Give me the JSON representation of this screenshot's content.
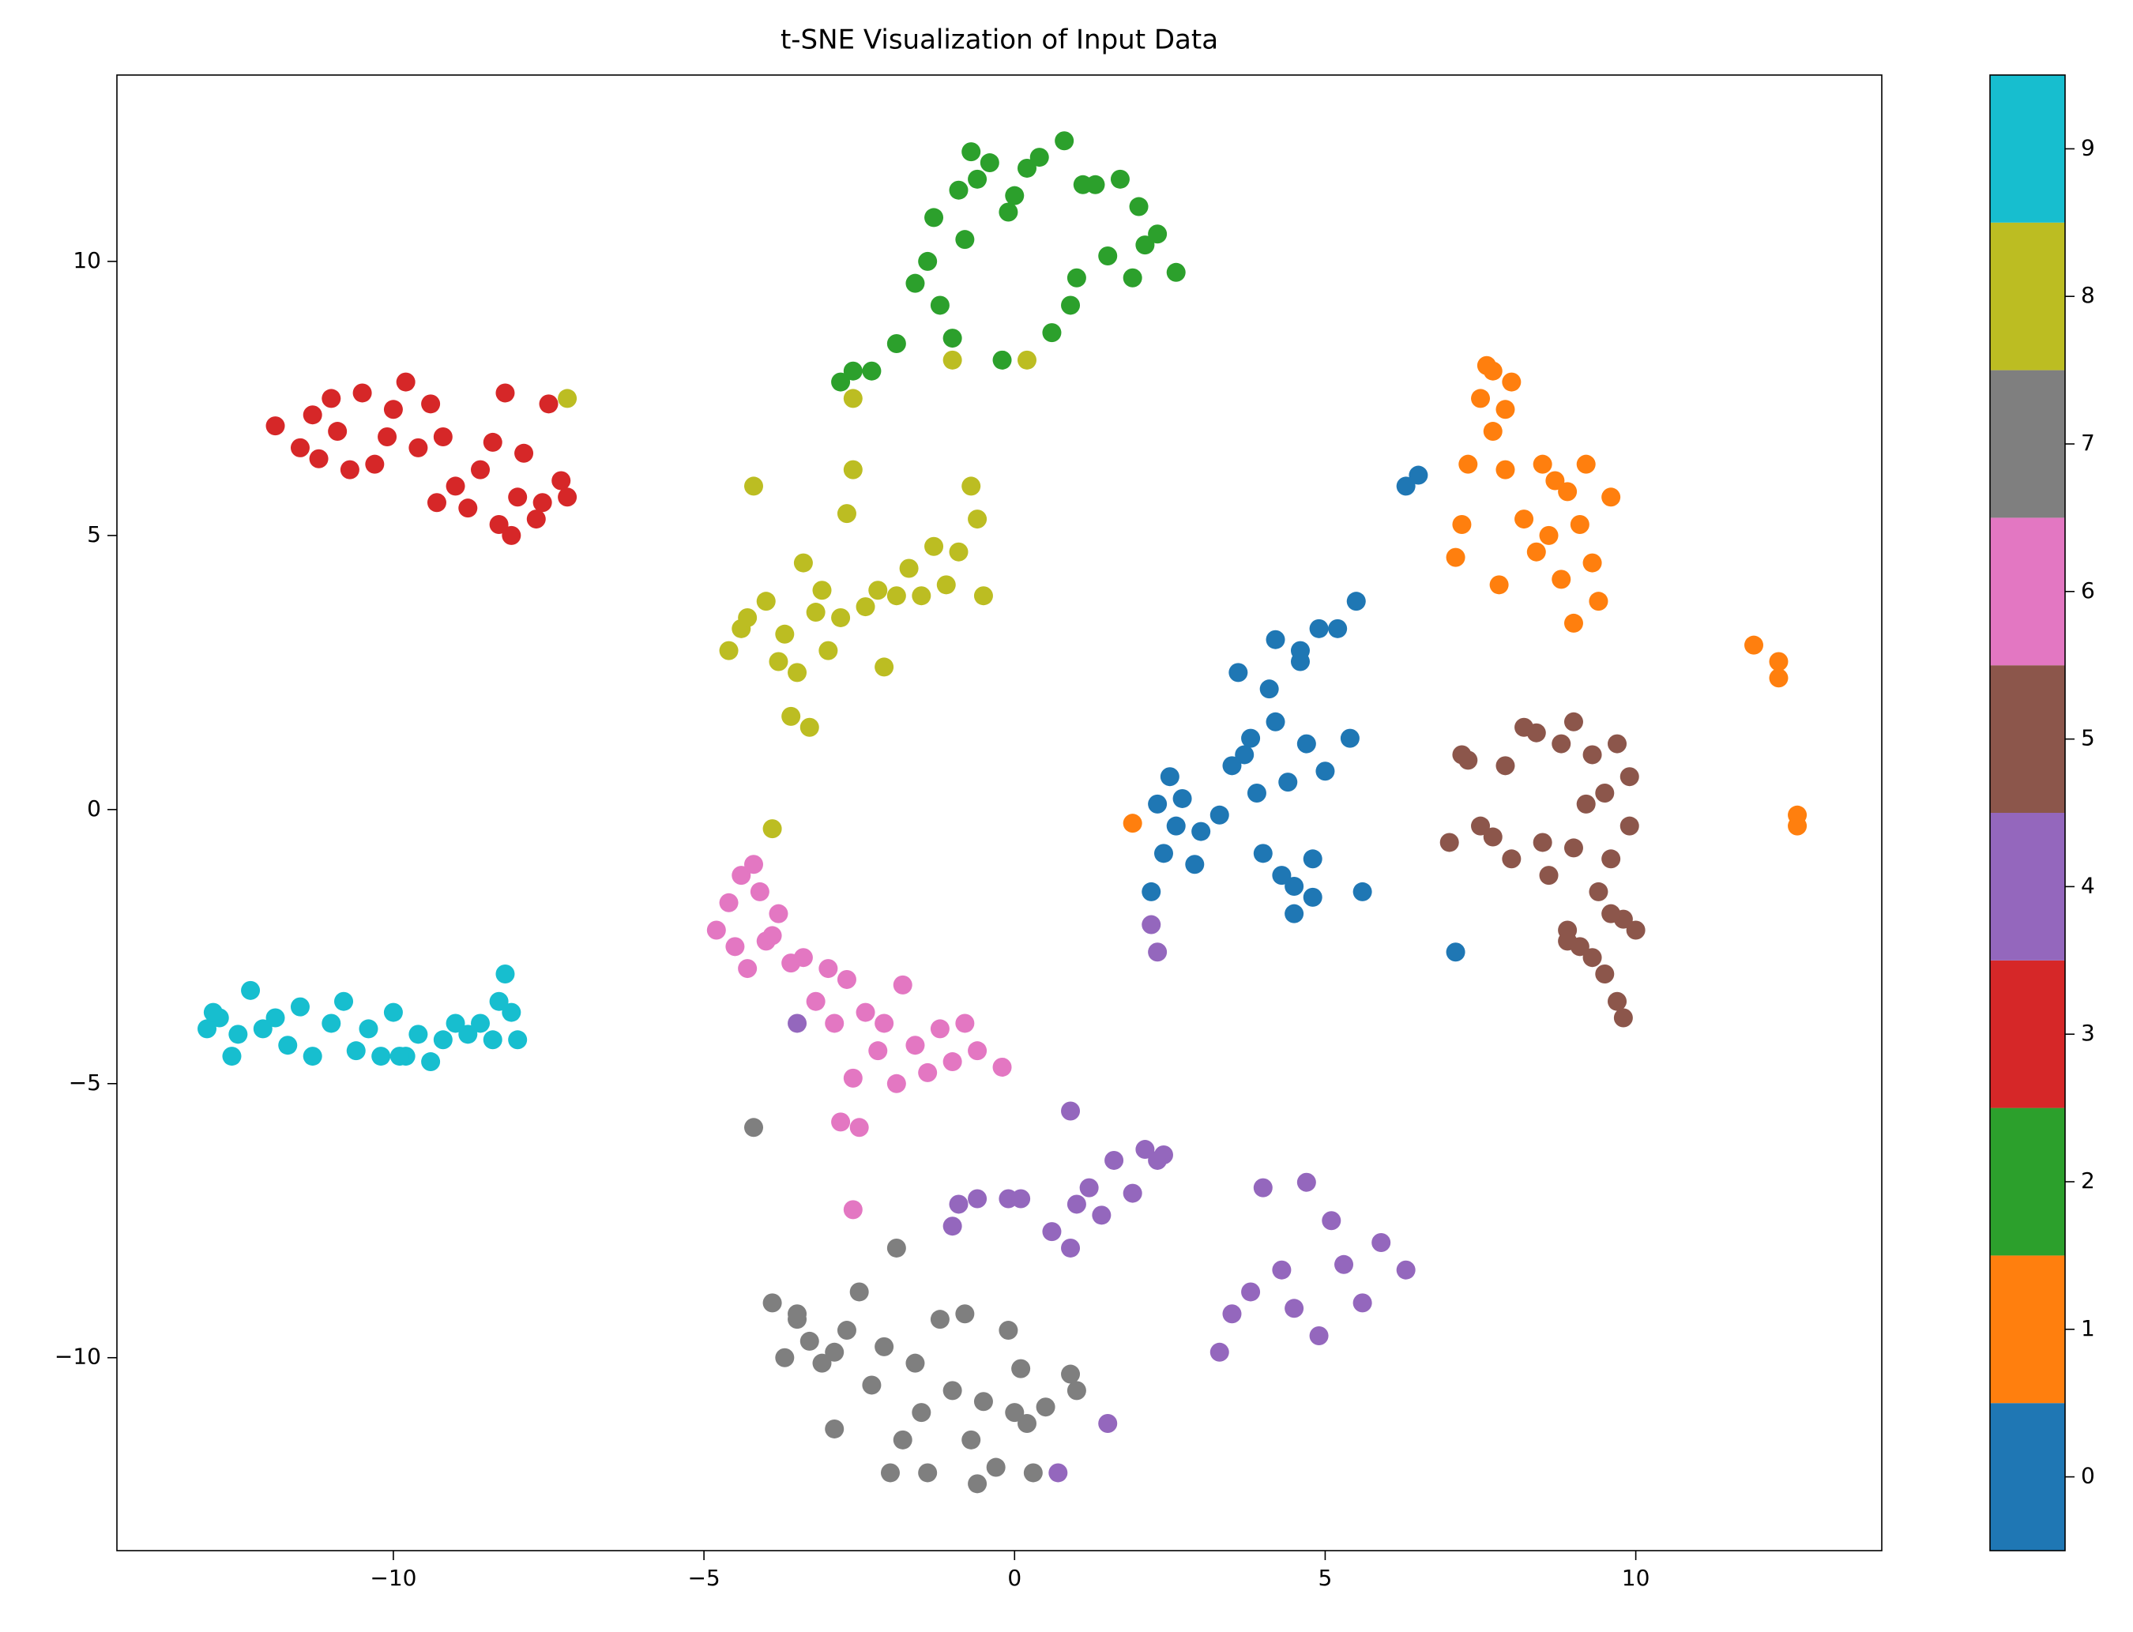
{
  "chart_data": {
    "type": "scatter",
    "title": "t-SNE Visualization of Input Data",
    "xlim": [
      -14.45,
      13.96
    ],
    "ylim": [
      -13.52,
      13.4
    ],
    "xticks": [
      {
        "value": -10,
        "label": "−10"
      },
      {
        "value": -5,
        "label": "−5"
      },
      0,
      5,
      10
    ],
    "yticks": [
      {
        "value": -10,
        "label": "−10"
      },
      {
        "value": -5,
        "label": "−5"
      },
      0,
      5,
      10
    ],
    "colormap": [
      "#1f77b4",
      "#ff7f0e",
      "#2ca02c",
      "#d62728",
      "#9467bd",
      "#8c564b",
      "#e377c2",
      "#7f7f7f",
      "#bcbd22",
      "#17becf"
    ],
    "clim": [
      -0.5,
      9.5
    ],
    "cticks": [
      0,
      1,
      2,
      3,
      4,
      5,
      6,
      7,
      8,
      9
    ],
    "series": [
      {
        "c": 0,
        "x": [
          2.2,
          2.3,
          2.5,
          2.6,
          2.7,
          2.9,
          3.0,
          3.3,
          3.5,
          3.6,
          3.8,
          3.9,
          4.0,
          4.1,
          4.2,
          4.3,
          4.4,
          4.5,
          4.6,
          4.7,
          4.8,
          4.9,
          5.0,
          5.2,
          5.4,
          5.5,
          5.6,
          4.5,
          4.2,
          3.7,
          4.6,
          6.3,
          6.5,
          7.1,
          4.8,
          2.4
        ],
        "y": [
          -1.5,
          0.1,
          0.6,
          -0.3,
          0.2,
          -1.0,
          -0.4,
          -0.1,
          0.8,
          2.5,
          1.3,
          0.3,
          -0.8,
          2.2,
          3.1,
          -1.2,
          0.5,
          -1.9,
          2.7,
          1.2,
          -0.9,
          3.3,
          0.7,
          3.3,
          1.3,
          3.8,
          -1.5,
          -1.4,
          1.6,
          1.0,
          2.9,
          5.9,
          6.1,
          -2.6,
          -1.6,
          -0.8
        ]
      },
      {
        "c": 1,
        "x": [
          7.1,
          7.2,
          7.3,
          7.5,
          7.6,
          7.7,
          7.8,
          7.9,
          8.0,
          8.2,
          8.4,
          8.5,
          8.6,
          8.7,
          8.8,
          8.9,
          9.0,
          9.1,
          9.2,
          9.3,
          9.4,
          9.6,
          7.7,
          7.9,
          11.9,
          12.3,
          12.3,
          12.6,
          12.6,
          1.9
        ],
        "y": [
          4.6,
          5.2,
          6.3,
          7.5,
          8.1,
          8.0,
          4.1,
          6.2,
          7.8,
          5.3,
          4.7,
          6.3,
          5.0,
          6.0,
          4.2,
          5.8,
          3.4,
          5.2,
          6.3,
          4.5,
          3.8,
          5.7,
          6.9,
          7.3,
          3.0,
          2.7,
          2.4,
          -0.1,
          -0.3,
          -0.25
        ]
      },
      {
        "c": 2,
        "x": [
          -2.8,
          -2.6,
          -2.3,
          -1.9,
          -1.6,
          -1.4,
          -1.3,
          -1.2,
          -1.0,
          -0.9,
          -0.8,
          -0.7,
          -0.6,
          -0.4,
          -0.2,
          0.0,
          0.2,
          0.4,
          0.6,
          0.8,
          1.0,
          1.1,
          1.3,
          1.5,
          1.7,
          1.9,
          2.0,
          2.1,
          2.3,
          2.6,
          -0.1,
          0.9
        ],
        "y": [
          7.8,
          8.0,
          8.0,
          8.5,
          9.6,
          10.0,
          10.8,
          9.2,
          8.6,
          11.3,
          10.4,
          12.0,
          11.5,
          11.8,
          8.2,
          11.2,
          11.7,
          11.9,
          8.7,
          12.2,
          9.7,
          11.4,
          11.4,
          10.1,
          11.5,
          9.7,
          11.0,
          10.3,
          10.5,
          9.8,
          10.9,
          9.2
        ]
      },
      {
        "c": 3,
        "x": [
          -11.9,
          -11.5,
          -11.3,
          -11.2,
          -11.0,
          -10.9,
          -10.7,
          -10.5,
          -10.3,
          -10.1,
          -10.0,
          -9.8,
          -9.6,
          -9.4,
          -9.3,
          -9.2,
          -9.0,
          -8.8,
          -8.6,
          -8.4,
          -8.3,
          -8.2,
          -8.0,
          -7.9,
          -7.7,
          -7.6,
          -7.5,
          -7.3,
          -7.2,
          -8.1
        ],
        "y": [
          7.0,
          6.6,
          7.2,
          6.4,
          7.5,
          6.9,
          6.2,
          7.6,
          6.3,
          6.8,
          7.3,
          7.8,
          6.6,
          7.4,
          5.6,
          6.8,
          5.9,
          5.5,
          6.2,
          6.7,
          5.2,
          7.6,
          5.7,
          6.5,
          5.3,
          5.6,
          7.4,
          6.0,
          5.7,
          5.0
        ]
      },
      {
        "c": 4,
        "x": [
          -3.5,
          -1.0,
          -0.9,
          -0.6,
          -0.1,
          0.1,
          0.6,
          0.9,
          0.9,
          1.0,
          1.2,
          1.4,
          1.6,
          1.9,
          2.1,
          2.3,
          2.4,
          2.2,
          2.3,
          3.3,
          3.5,
          3.8,
          4.0,
          4.3,
          4.5,
          4.7,
          4.9,
          5.1,
          5.3,
          5.6,
          5.9,
          6.3,
          1.5,
          0.7
        ],
        "y": [
          -3.9,
          -7.6,
          -7.2,
          -7.1,
          -7.1,
          -7.1,
          -7.7,
          -5.5,
          -8.0,
          -7.2,
          -6.9,
          -7.4,
          -6.4,
          -7.0,
          -6.2,
          -6.4,
          -6.3,
          -2.1,
          -2.6,
          -9.9,
          -9.2,
          -8.8,
          -6.9,
          -8.4,
          -9.1,
          -6.8,
          -9.6,
          -7.5,
          -8.3,
          -9.0,
          -7.9,
          -8.4,
          -11.2,
          -12.1
        ]
      },
      {
        "c": 5,
        "x": [
          7.0,
          7.2,
          7.3,
          7.5,
          7.7,
          7.9,
          8.0,
          8.2,
          8.4,
          8.5,
          8.6,
          8.8,
          8.9,
          9.0,
          9.0,
          9.1,
          9.2,
          9.3,
          9.4,
          9.5,
          9.5,
          9.6,
          9.7,
          9.7,
          9.8,
          9.8,
          9.9,
          9.9,
          10.0,
          9.6,
          9.3,
          8.9
        ],
        "y": [
          -0.6,
          1.0,
          0.9,
          -0.3,
          -0.5,
          0.8,
          -0.9,
          1.5,
          1.4,
          -0.6,
          -1.2,
          1.2,
          -2.2,
          1.6,
          -0.7,
          -2.5,
          0.1,
          1.0,
          -1.5,
          -3.0,
          0.3,
          -0.9,
          -3.5,
          1.2,
          -2.0,
          -3.8,
          -0.3,
          0.6,
          -2.2,
          -1.9,
          -2.7,
          -2.4
        ]
      },
      {
        "c": 6,
        "x": [
          -4.8,
          -4.6,
          -4.5,
          -4.4,
          -4.3,
          -4.2,
          -4.0,
          -3.8,
          -3.6,
          -3.4,
          -3.2,
          -3.0,
          -2.9,
          -2.7,
          -2.6,
          -2.5,
          -2.4,
          -2.2,
          -2.1,
          -1.9,
          -1.8,
          -1.6,
          -1.4,
          -1.2,
          -1.0,
          -0.8,
          -0.6,
          -0.2,
          -2.6,
          -2.8,
          -4.1,
          -3.9
        ],
        "y": [
          -2.2,
          -1.7,
          -2.5,
          -1.2,
          -2.9,
          -1.0,
          -2.4,
          -1.9,
          -2.8,
          -2.7,
          -3.5,
          -2.9,
          -3.9,
          -3.1,
          -4.9,
          -5.8,
          -3.7,
          -4.4,
          -3.9,
          -5.0,
          -3.2,
          -4.3,
          -4.8,
          -4.0,
          -4.6,
          -3.9,
          -4.4,
          -4.7,
          -7.3,
          -5.7,
          -1.5,
          -2.3
        ]
      },
      {
        "c": 7,
        "x": [
          -4.2,
          -3.9,
          -3.7,
          -3.5,
          -3.3,
          -3.1,
          -2.9,
          -2.7,
          -2.5,
          -2.3,
          -2.1,
          -1.9,
          -1.8,
          -1.6,
          -1.4,
          -1.2,
          -1.0,
          -0.8,
          -0.7,
          -0.5,
          -0.3,
          -0.1,
          0.0,
          0.1,
          0.3,
          0.5,
          0.9,
          1.0,
          -2.9,
          -1.5,
          -0.6,
          0.2,
          -3.5,
          -2.0
        ],
        "y": [
          -5.8,
          -9.0,
          -10.0,
          -9.3,
          -9.7,
          -10.1,
          -11.3,
          -9.5,
          -8.8,
          -10.5,
          -9.8,
          -8.0,
          -11.5,
          -10.1,
          -12.1,
          -9.3,
          -10.6,
          -9.2,
          -11.5,
          -10.8,
          -12.0,
          -9.5,
          -11.0,
          -10.2,
          -12.1,
          -10.9,
          -10.3,
          -10.6,
          -9.9,
          -11.0,
          -12.3,
          -11.2,
          -9.2,
          -12.1
        ]
      },
      {
        "c": 8,
        "x": [
          -4.6,
          -4.4,
          -4.2,
          -4.0,
          -3.8,
          -3.7,
          -3.6,
          -3.5,
          -3.4,
          -3.3,
          -3.2,
          -3.1,
          -3.0,
          -2.8,
          -2.7,
          -2.6,
          -2.4,
          -2.2,
          -2.1,
          -1.9,
          -1.7,
          -1.5,
          -1.3,
          -1.1,
          -0.9,
          -0.7,
          -0.6,
          -0.5,
          -4.3,
          -2.6,
          -7.2,
          -1.0,
          0.2,
          -3.9
        ],
        "y": [
          2.9,
          3.3,
          5.9,
          3.8,
          2.7,
          3.2,
          1.7,
          2.5,
          4.5,
          1.5,
          3.6,
          4.0,
          2.9,
          3.5,
          5.4,
          6.2,
          3.7,
          4.0,
          2.6,
          3.9,
          4.4,
          3.9,
          4.8,
          4.1,
          4.7,
          5.9,
          5.3,
          3.9,
          3.5,
          7.5,
          7.5,
          8.2,
          8.2,
          -0.35
        ]
      },
      {
        "c": 9,
        "x": [
          -13.0,
          -12.8,
          -12.6,
          -12.5,
          -12.3,
          -12.1,
          -11.9,
          -11.7,
          -11.5,
          -11.3,
          -11.0,
          -10.8,
          -10.6,
          -10.4,
          -10.2,
          -10.0,
          -9.8,
          -9.6,
          -9.4,
          -9.2,
          -9.0,
          -8.8,
          -8.6,
          -8.4,
          -8.3,
          -8.2,
          -8.1,
          -8.0,
          -12.9,
          -9.9
        ],
        "y": [
          -4.0,
          -3.8,
          -4.5,
          -4.1,
          -3.3,
          -4.0,
          -3.8,
          -4.3,
          -3.6,
          -4.5,
          -3.9,
          -3.5,
          -4.4,
          -4.0,
          -4.5,
          -3.7,
          -4.5,
          -4.1,
          -4.6,
          -4.2,
          -3.9,
          -4.1,
          -3.9,
          -4.2,
          -3.5,
          -3.0,
          -3.7,
          -4.2,
          -3.7,
          -4.5
        ]
      }
    ]
  }
}
